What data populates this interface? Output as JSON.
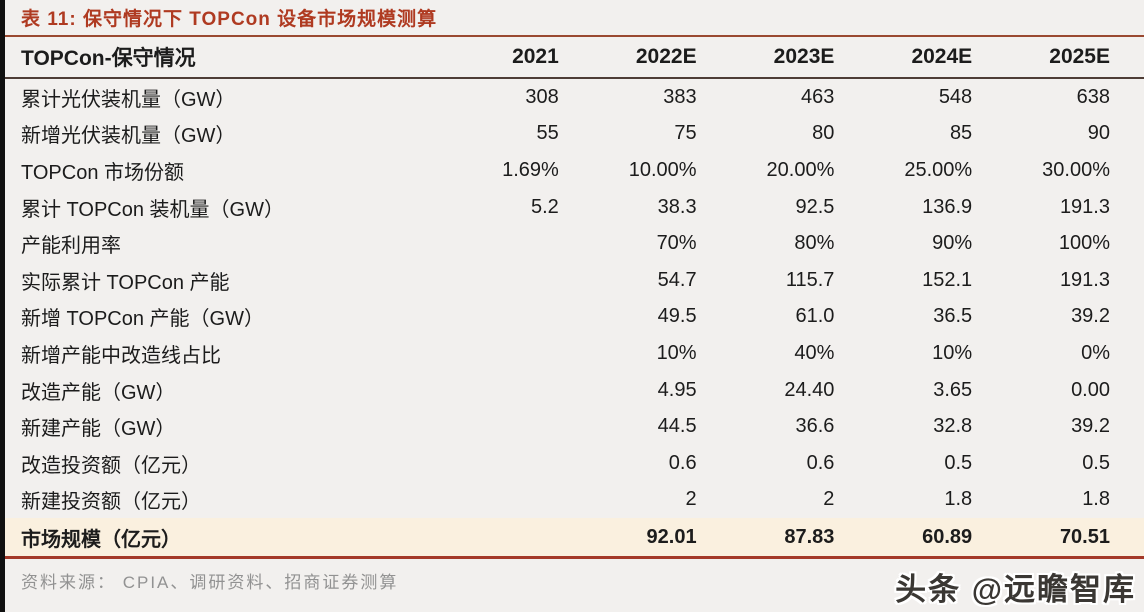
{
  "page": {
    "background_color": "#F2F0EE",
    "accent_red": "#AF3A21",
    "highlight_row_bg": "#FAF0DF",
    "bottom_rule_color": "#A43928"
  },
  "title": {
    "text": "表 11:  保守情况下 TOPCon 设备市场规模测算"
  },
  "table": {
    "header": {
      "label": "TOPCon-保守情况",
      "columns": [
        "2021",
        "2022E",
        "2023E",
        "2024E",
        "2025E"
      ]
    },
    "rows": [
      {
        "label": "累计光伏装机量（GW）",
        "values": [
          "308",
          "383",
          "463",
          "548",
          "638"
        ]
      },
      {
        "label": "新增光伏装机量（GW）",
        "values": [
          "55",
          "75",
          "80",
          "85",
          "90"
        ]
      },
      {
        "label": "TOPCon 市场份额",
        "values": [
          "1.69%",
          "10.00%",
          "20.00%",
          "25.00%",
          "30.00%"
        ]
      },
      {
        "label": "累计 TOPCon 装机量（GW）",
        "values": [
          "5.2",
          "38.3",
          "92.5",
          "136.9",
          "191.3"
        ]
      },
      {
        "label": "产能利用率",
        "values": [
          "",
          "70%",
          "80%",
          "90%",
          "100%"
        ]
      },
      {
        "label": "实际累计 TOPCon 产能",
        "values": [
          "",
          "54.7",
          "115.7",
          "152.1",
          "191.3"
        ]
      },
      {
        "label": "新增 TOPCon 产能（GW）",
        "values": [
          "",
          "49.5",
          "61.0",
          "36.5",
          "39.2"
        ]
      },
      {
        "label": "新增产能中改造线占比",
        "values": [
          "",
          "10%",
          "40%",
          "10%",
          "0%"
        ]
      },
      {
        "label": "改造产能（GW）",
        "values": [
          "",
          "4.95",
          "24.40",
          "3.65",
          "0.00"
        ]
      },
      {
        "label": "新建产能（GW）",
        "values": [
          "",
          "44.5",
          "36.6",
          "32.8",
          "39.2"
        ]
      },
      {
        "label": "改造投资额（亿元）",
        "values": [
          "",
          "0.6",
          "0.6",
          "0.5",
          "0.5"
        ]
      },
      {
        "label": "新建投资额（亿元）",
        "values": [
          "",
          "2",
          "2",
          "1.8",
          "1.8"
        ]
      }
    ],
    "total_row": {
      "label": "市场规模（亿元）",
      "values": [
        "",
        "92.01",
        "87.83",
        "60.89",
        "70.51"
      ]
    }
  },
  "footer": {
    "source": "资料来源： CPIA、调研资料、招商证券测算"
  },
  "watermark": {
    "text": "头条 @远瞻智库"
  }
}
